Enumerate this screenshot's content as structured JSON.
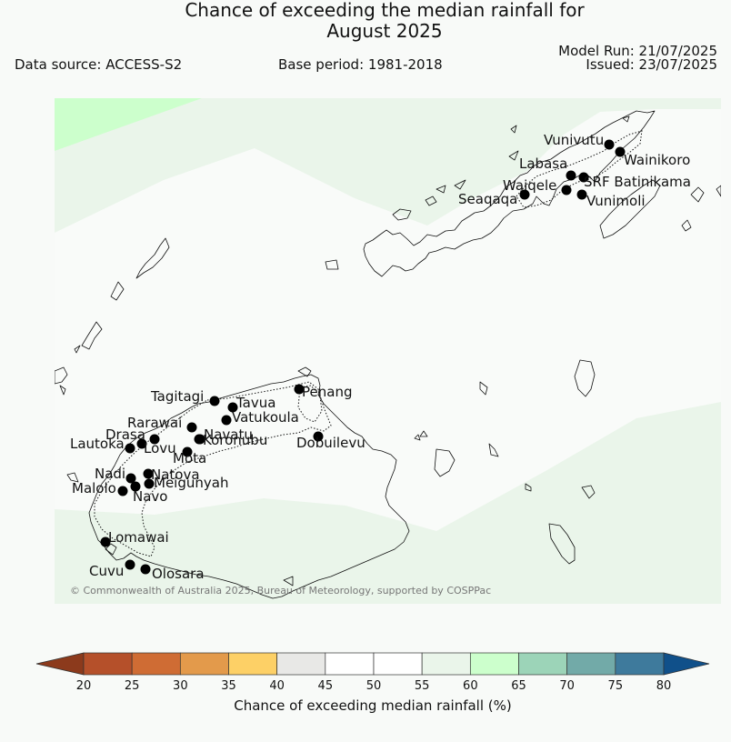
{
  "header": {
    "title_line1": "Chance of exceeding the median rainfall for",
    "title_line2": "August 2025",
    "data_source": "Data source: ACCESS-S2",
    "base_period": "Base period: 1981-2018",
    "model_run": "Model Run: 21/07/2025",
    "issued": "Issued: 23/07/2025"
  },
  "map": {
    "copyright": "© Commonwealth of Australia 2025, Bureau of Meteorology, supported by COSPPac",
    "stations": [
      {
        "name": "Vunivutu"
      },
      {
        "name": "Wainikoro"
      },
      {
        "name": "Labasa"
      },
      {
        "name": "Waiqele"
      },
      {
        "name": "SRF Batinikama"
      },
      {
        "name": "Seaqaqa"
      },
      {
        "name": "Vunimoli"
      },
      {
        "name": "Tagitagi"
      },
      {
        "name": "Tavua"
      },
      {
        "name": "Penang"
      },
      {
        "name": "Vatukoula"
      },
      {
        "name": "Rarawai"
      },
      {
        "name": "Navatu"
      },
      {
        "name": "Drasa"
      },
      {
        "name": "Koronubu"
      },
      {
        "name": "Dobuilevu"
      },
      {
        "name": "Lautoka"
      },
      {
        "name": "Lovu"
      },
      {
        "name": "Mota"
      },
      {
        "name": "Natova"
      },
      {
        "name": "Nadi"
      },
      {
        "name": "Meigunyah"
      },
      {
        "name": "Malolo"
      },
      {
        "name": "Navo"
      },
      {
        "name": "Lomawai"
      },
      {
        "name": "Cuvu"
      },
      {
        "name": "Olosara"
      }
    ]
  },
  "colorbar": {
    "label": "Chance of exceeding median rainfall (%)",
    "ticks": [
      "20",
      "25",
      "30",
      "35",
      "40",
      "45",
      "50",
      "55",
      "60",
      "65",
      "70",
      "75",
      "80"
    ],
    "under_color": "#8c3a1c",
    "over_color": "#10508a",
    "bins": [
      "#b5502a",
      "#cf6c34",
      "#e39a4b",
      "#fdd066",
      "#e8e8e6",
      "#ffffff",
      "#ffffff",
      "#eaf5ea",
      "#ccffcc",
      "#9cd4b8",
      "#72aaa8",
      "#3e7a9c"
    ]
  },
  "colors": {
    "shade_light_green": "#eaf5ea",
    "shade_green": "#ccffcc",
    "background": "#f9fbf9",
    "coastline": "#111111"
  }
}
